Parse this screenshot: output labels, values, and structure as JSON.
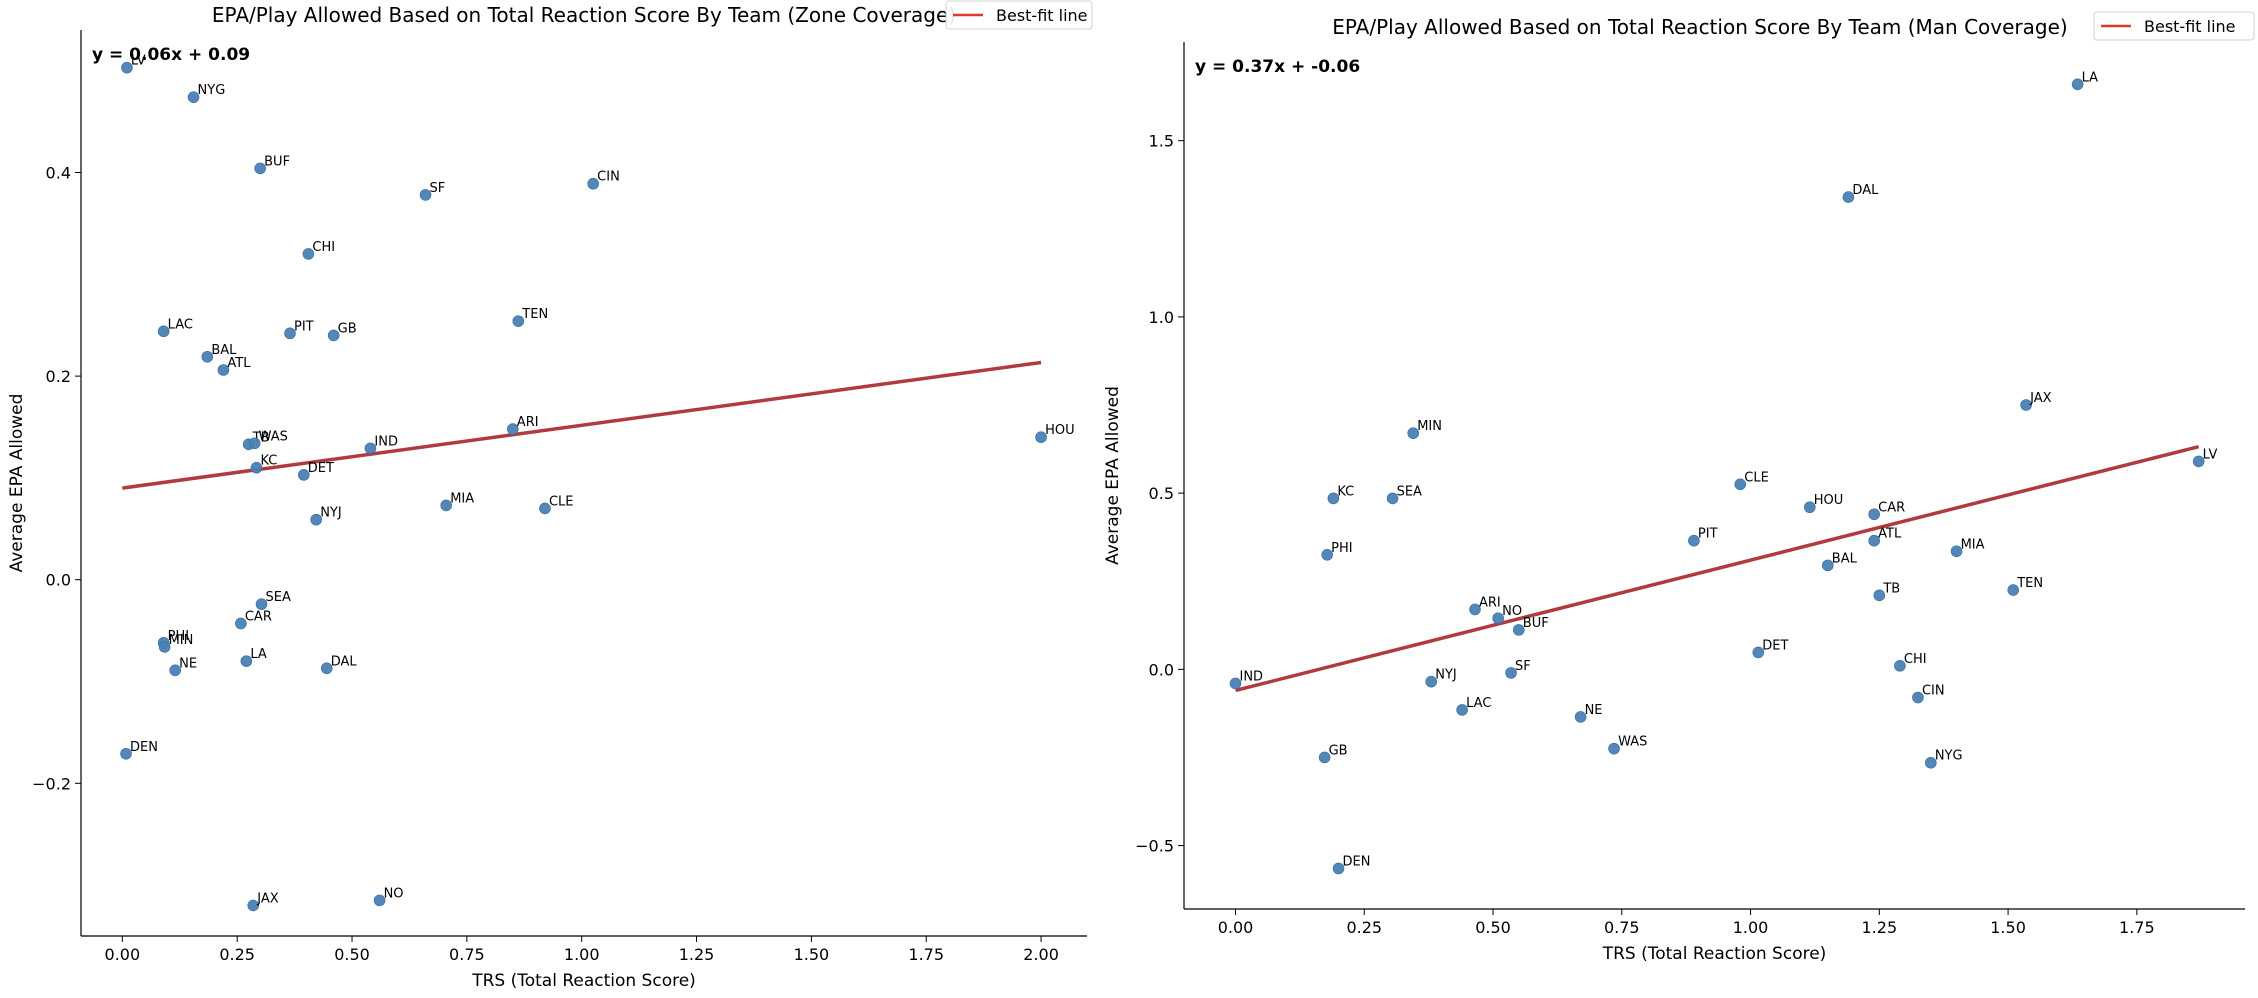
{
  "colors": {
    "point": "#4a7fb5",
    "fit_line": "#b03a40",
    "legend_line": "#e0392b"
  },
  "chart_data": [
    {
      "type": "scatter",
      "title": "EPA/Play Allowed Based on Total Reaction Score By Team (Zone Coverage)",
      "xlabel": "TRS (Total Reaction Score)",
      "ylabel": "Average EPA Allowed",
      "xlim": [
        -0.09,
        2.1
      ],
      "ylim": [
        -0.35,
        0.54
      ],
      "xticks": [
        0,
        0.25,
        0.5,
        0.75,
        1.0,
        1.25,
        1.5,
        1.75,
        2.0
      ],
      "xtick_labels": [
        "0.00",
        "0.25",
        "0.50",
        "0.75",
        "1.00",
        "1.25",
        "1.50",
        "1.75",
        "2.00"
      ],
      "yticks": [
        -0.2,
        0,
        0.2,
        0.4
      ],
      "ytick_labels": [
        "−0.2",
        "0.0",
        "0.2",
        "0.4"
      ],
      "equation": "y = 0.06x + 0.09",
      "fit": {
        "slope": 0.0617,
        "intercept": 0.09,
        "x_range": [
          0,
          2.0
        ]
      },
      "legend": {
        "label": "Best-fit line",
        "placement": "top-right"
      },
      "grid": false,
      "points": [
        {
          "team": "LV",
          "x": 0.01,
          "y": 0.503
        },
        {
          "team": "NYG",
          "x": 0.155,
          "y": 0.474
        },
        {
          "team": "BUF",
          "x": 0.3,
          "y": 0.404
        },
        {
          "team": "CIN",
          "x": 1.025,
          "y": 0.389
        },
        {
          "team": "SF",
          "x": 0.66,
          "y": 0.378
        },
        {
          "team": "CHI",
          "x": 0.405,
          "y": 0.32
        },
        {
          "team": "TEN",
          "x": 0.862,
          "y": 0.254
        },
        {
          "team": "LAC",
          "x": 0.09,
          "y": 0.244
        },
        {
          "team": "PIT",
          "x": 0.365,
          "y": 0.242
        },
        {
          "team": "GB",
          "x": 0.46,
          "y": 0.24
        },
        {
          "team": "BAL",
          "x": 0.185,
          "y": 0.219
        },
        {
          "team": "ATL",
          "x": 0.22,
          "y": 0.206
        },
        {
          "team": "HOU",
          "x": 2.0,
          "y": 0.14
        },
        {
          "team": "ARI",
          "x": 0.85,
          "y": 0.148
        },
        {
          "team": "TB",
          "x": 0.275,
          "y": 0.133
        },
        {
          "team": "WAS",
          "x": 0.288,
          "y": 0.134
        },
        {
          "team": "IND",
          "x": 0.54,
          "y": 0.129
        },
        {
          "team": "KC",
          "x": 0.292,
          "y": 0.11
        },
        {
          "team": "DET",
          "x": 0.395,
          "y": 0.103
        },
        {
          "team": "MIA",
          "x": 0.705,
          "y": 0.073
        },
        {
          "team": "CLE",
          "x": 0.92,
          "y": 0.07
        },
        {
          "team": "NYJ",
          "x": 0.422,
          "y": 0.059
        },
        {
          "team": "SEA",
          "x": 0.303,
          "y": -0.024
        },
        {
          "team": "CAR",
          "x": 0.258,
          "y": -0.043
        },
        {
          "team": "PHI",
          "x": 0.09,
          "y": -0.062
        },
        {
          "team": "MIN",
          "x": 0.092,
          "y": -0.066
        },
        {
          "team": "LA",
          "x": 0.27,
          "y": -0.08
        },
        {
          "team": "NE",
          "x": 0.115,
          "y": -0.089
        },
        {
          "team": "DAL",
          "x": 0.445,
          "y": -0.087
        },
        {
          "team": "DEN",
          "x": 0.008,
          "y": -0.171
        },
        {
          "team": "JAX",
          "x": 0.285,
          "y": -0.32
        },
        {
          "team": "NO",
          "x": 0.56,
          "y": -0.315
        }
      ]
    },
    {
      "type": "scatter",
      "title": "EPA/Play Allowed Based on Total Reaction Score By Team (Man Coverage)",
      "xlabel": "TRS (Total Reaction Score)",
      "ylabel": "Average EPA Allowed",
      "xlim": [
        -0.1,
        1.96
      ],
      "ylim": [
        -0.68,
        1.78
      ],
      "xticks": [
        0,
        0.25,
        0.5,
        0.75,
        1.0,
        1.25,
        1.5,
        1.75
      ],
      "xtick_labels": [
        "0.00",
        "0.25",
        "0.50",
        "0.75",
        "1.00",
        "1.25",
        "1.50",
        "1.75"
      ],
      "yticks": [
        -0.5,
        0,
        0.5,
        1.0,
        1.5
      ],
      "ytick_labels": [
        "−0.5",
        "0.0",
        "0.5",
        "1.0",
        "1.5"
      ],
      "equation": "y = 0.37x + -0.06",
      "fit": {
        "slope": 0.37,
        "intercept": -0.06,
        "x_range": [
          0,
          1.87
        ]
      },
      "legend": {
        "label": "Best-fit line",
        "placement": "top-right"
      },
      "grid": false,
      "points": [
        {
          "team": "LA",
          "x": 1.635,
          "y": 1.66
        },
        {
          "team": "DAL",
          "x": 1.19,
          "y": 1.34
        },
        {
          "team": "JAX",
          "x": 1.535,
          "y": 0.75
        },
        {
          "team": "MIN",
          "x": 0.345,
          "y": 0.67
        },
        {
          "team": "LV",
          "x": 1.87,
          "y": 0.59
        },
        {
          "team": "CLE",
          "x": 0.98,
          "y": 0.525
        },
        {
          "team": "KC",
          "x": 0.19,
          "y": 0.485
        },
        {
          "team": "SEA",
          "x": 0.305,
          "y": 0.485
        },
        {
          "team": "HOU",
          "x": 1.115,
          "y": 0.46
        },
        {
          "team": "CAR",
          "x": 1.24,
          "y": 0.44
        },
        {
          "team": "PIT",
          "x": 0.89,
          "y": 0.365
        },
        {
          "team": "ATL",
          "x": 1.24,
          "y": 0.365
        },
        {
          "team": "MIA",
          "x": 1.4,
          "y": 0.335
        },
        {
          "team": "PHI",
          "x": 0.178,
          "y": 0.325
        },
        {
          "team": "BAL",
          "x": 1.15,
          "y": 0.295
        },
        {
          "team": "TEN",
          "x": 1.51,
          "y": 0.225
        },
        {
          "team": "TB",
          "x": 1.25,
          "y": 0.21
        },
        {
          "team": "ARI",
          "x": 0.465,
          "y": 0.17
        },
        {
          "team": "NO",
          "x": 0.51,
          "y": 0.145
        },
        {
          "team": "BUF",
          "x": 0.55,
          "y": 0.112
        },
        {
          "team": "DET",
          "x": 1.015,
          "y": 0.048
        },
        {
          "team": "CHI",
          "x": 1.29,
          "y": 0.01
        },
        {
          "team": "SF",
          "x": 0.535,
          "y": -0.01
        },
        {
          "team": "IND",
          "x": 0.0,
          "y": -0.04
        },
        {
          "team": "NYJ",
          "x": 0.38,
          "y": -0.035
        },
        {
          "team": "CIN",
          "x": 1.325,
          "y": -0.08
        },
        {
          "team": "LAC",
          "x": 0.44,
          "y": -0.115
        },
        {
          "team": "NE",
          "x": 0.67,
          "y": -0.135
        },
        {
          "team": "WAS",
          "x": 0.735,
          "y": -0.225
        },
        {
          "team": "GB",
          "x": 0.173,
          "y": -0.25
        },
        {
          "team": "NYG",
          "x": 1.35,
          "y": -0.265
        },
        {
          "team": "DEN",
          "x": 0.2,
          "y": -0.565
        }
      ]
    }
  ]
}
